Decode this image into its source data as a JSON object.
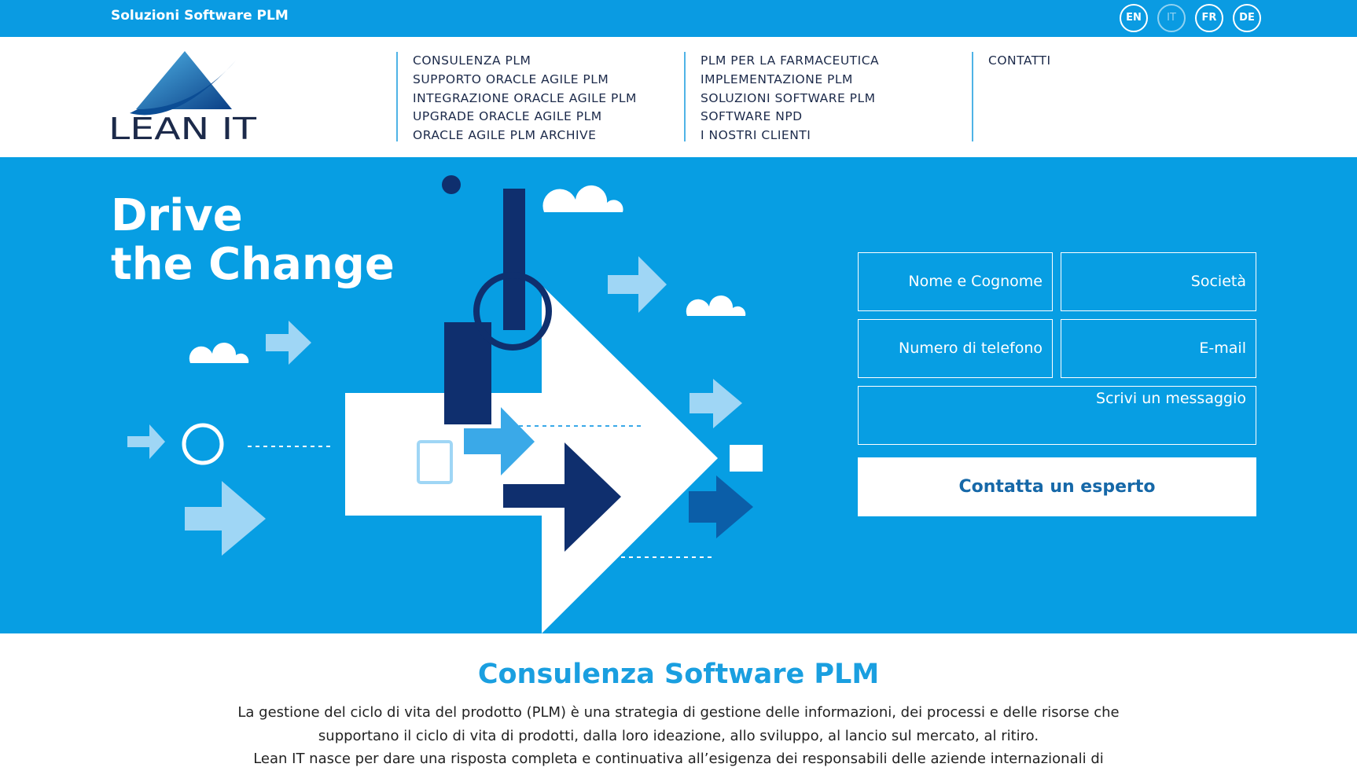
{
  "header": {
    "tagline": "Soluzioni Software PLM",
    "languages": [
      "EN",
      "IT",
      "FR",
      "DE"
    ],
    "logo": "LEAN IT"
  },
  "nav": [
    [
      "CONSULENZA PLM",
      "SUPPORTO ORACLE AGILE PLM",
      "INTEGRAZIONE ORACLE AGILE PLM",
      "UPGRADE ORACLE AGILE PLM",
      "ORACLE AGILE PLM ARCHIVE"
    ],
    [
      "PLM PER LA FARMACEUTICA",
      "IMPLEMENTAZIONE PLM",
      "SOLUZIONI SOFTWARE PLM",
      "SOFTWARE NPD",
      "I NOSTRI CLIENTI"
    ],
    [
      "CONTATTI"
    ]
  ],
  "hero": {
    "title": [
      "Drive",
      "the Change"
    ],
    "form": {
      "fields": [
        "Nome e Cognome",
        "Società",
        "Numero di telefono",
        "E-mail",
        "Scrivi un messaggio"
      ],
      "button": "Contatta un esperto"
    }
  },
  "section": {
    "title": "Consulenza Software PLM",
    "paragraph": [
      "La gestione del ciclo di vita del prodotto (PLM) è una strategia di gestione delle informazioni, dei processi e delle risorse che",
      "supportano il ciclo di vita di prodotti, dalla loro ideazione, allo sviluppo, al lancio sul mercato, al ritiro.",
      "Lean IT nasce per dare una risposta completa e continuativa all’esigenza dei responsabili delle aziende internazionali di"
    ]
  }
}
